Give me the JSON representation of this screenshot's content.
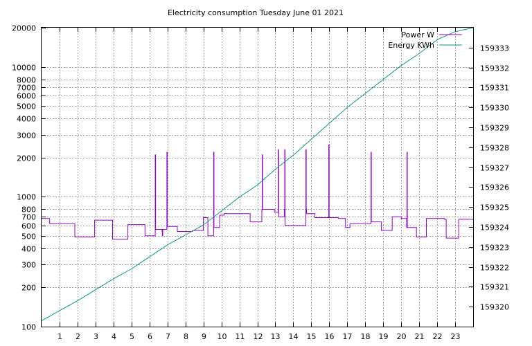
{
  "chart_data": {
    "type": "line",
    "title": "Electricity consumption Tuesday June 01 2021",
    "xlabel": "",
    "ylabel": "",
    "xlim": [
      0,
      24
    ],
    "ylim": [
      100,
      20000
    ],
    "y_scale": "log",
    "y2lim": [
      159319,
      159334
    ],
    "grid": true,
    "legend_position": "top-right",
    "x_ticks": [
      "1",
      "2",
      "3",
      "4",
      "5",
      "6",
      "7",
      "8",
      "9",
      "10",
      "11",
      "12",
      "13",
      "14",
      "15",
      "16",
      "17",
      "18",
      "19",
      "20",
      "21",
      "22",
      "23"
    ],
    "y_ticks": [
      "100",
      "200",
      "300",
      "400",
      "500",
      "600",
      "700",
      "800",
      "1000",
      "2000",
      "3000",
      "4000",
      "5000",
      "6000",
      "7000",
      "8000",
      "10000",
      "20000"
    ],
    "y2_ticks": [
      "159320",
      "159321",
      "159322",
      "159323",
      "159324",
      "159325",
      "159326",
      "159327",
      "159328",
      "159329",
      "159330",
      "159331",
      "159332",
      "159333"
    ],
    "series": [
      {
        "name": "Power W",
        "axis": "left",
        "color": "#9400d3",
        "step": true,
        "x": [
          0,
          0.45,
          1.85,
          2.95,
          3.95,
          4.8,
          5.75,
          6.3,
          6.32,
          6.34,
          6.7,
          6.72,
          6.74,
          6.95,
          6.97,
          6.99,
          7.55,
          8.4,
          9.0,
          9.25,
          9.55,
          9.57,
          9.59,
          9.9,
          10.15,
          11.6,
          12.25,
          12.27,
          12.29,
          12.95,
          13.15,
          13.17,
          13.19,
          13.5,
          13.52,
          13.54,
          14.4,
          14.7,
          14.72,
          14.74,
          15.2,
          15.95,
          15.97,
          15.99,
          16.5,
          16.9,
          17.15,
          18.3,
          18.32,
          18.34,
          18.9,
          19.5,
          20.0,
          20.3,
          20.32,
          20.34,
          20.85,
          21.4,
          22.4,
          22.5,
          23.2,
          24.0
        ],
        "y": [
          680,
          620,
          490,
          660,
          470,
          610,
          500,
          500,
          2100,
          560,
          540,
          500,
          560,
          560,
          2200,
          590,
          540,
          550,
          690,
          500,
          500,
          2200,
          580,
          720,
          740,
          640,
          780,
          2100,
          800,
          760,
          760,
          2300,
          700,
          800,
          2300,
          600,
          600,
          2300,
          800,
          740,
          690,
          690,
          2500,
          690,
          680,
          580,
          620,
          620,
          2200,
          640,
          550,
          700,
          680,
          580,
          2200,
          580,
          490,
          680,
          670,
          480,
          670,
          670
        ]
      },
      {
        "name": "Energy KWh",
        "axis": "right",
        "color": "#009e73",
        "step": false,
        "x": [
          0,
          2,
          4,
          5,
          6,
          7,
          8,
          9,
          10,
          11,
          12,
          13,
          14,
          15,
          16,
          17,
          18,
          19,
          20,
          21,
          22,
          23,
          24
        ],
        "y": [
          159319.3,
          159320.3,
          159321.4,
          159321.9,
          159322.5,
          159323.1,
          159323.6,
          159324.1,
          159324.8,
          159325.5,
          159326.1,
          159326.9,
          159327.6,
          159328.4,
          159329.2,
          159330.0,
          159330.7,
          159331.4,
          159332.1,
          159332.7,
          159333.4,
          159333.8,
          159334.0
        ]
      }
    ]
  }
}
